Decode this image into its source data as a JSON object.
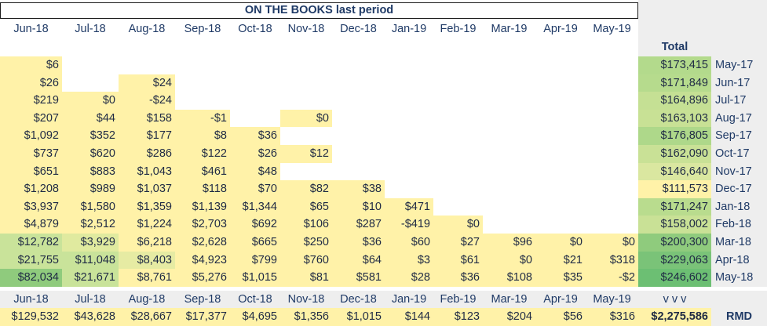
{
  "title": "ON THE BOOKS last period",
  "months": [
    "Jun-18",
    "Jul-18",
    "Aug-18",
    "Sep-18",
    "Oct-18",
    "Nov-18",
    "Dec-18",
    "Jan-19",
    "Feb-19",
    "Mar-19",
    "Apr-19",
    "May-19"
  ],
  "total_header": "Total",
  "rows": [
    {
      "label": "May-17",
      "total": "$173,415",
      "cells": [
        "$6",
        "",
        "",
        "",
        "",
        "",
        "",
        "",
        "",
        "",
        "",
        ""
      ]
    },
    {
      "label": "Jun-17",
      "total": "$171,849",
      "cells": [
        "$26",
        "",
        "$24",
        "",
        "",
        "",
        "",
        "",
        "",
        "",
        "",
        ""
      ]
    },
    {
      "label": "Jul-17",
      "total": "$164,896",
      "cells": [
        "$219",
        "$0",
        "-$24",
        "",
        "",
        "",
        "",
        "",
        "",
        "",
        "",
        ""
      ]
    },
    {
      "label": "Aug-17",
      "total": "$163,103",
      "cells": [
        "$207",
        "$44",
        "$158",
        "-$1",
        "",
        "$0",
        "",
        "",
        "",
        "",
        "",
        ""
      ]
    },
    {
      "label": "Sep-17",
      "total": "$176,805",
      "cells": [
        "$1,092",
        "$352",
        "$177",
        "$8",
        "$36",
        "",
        "",
        "",
        "",
        "",
        "",
        ""
      ]
    },
    {
      "label": "Oct-17",
      "total": "$162,090",
      "cells": [
        "$737",
        "$620",
        "$286",
        "$122",
        "$26",
        "$12",
        "",
        "",
        "",
        "",
        "",
        ""
      ]
    },
    {
      "label": "Nov-17",
      "total": "$146,640",
      "cells": [
        "$651",
        "$883",
        "$1,043",
        "$461",
        "$48",
        "",
        "",
        "",
        "",
        "",
        "",
        ""
      ]
    },
    {
      "label": "Dec-17",
      "total": "$111,573",
      "cells": [
        "$1,208",
        "$989",
        "$1,037",
        "$118",
        "$70",
        "$82",
        "$38",
        "",
        "",
        "",
        "",
        ""
      ]
    },
    {
      "label": "Jan-18",
      "total": "$171,247",
      "cells": [
        "$3,937",
        "$1,580",
        "$1,359",
        "$1,139",
        "$1,344",
        "$65",
        "$10",
        "$471",
        "",
        "",
        "",
        ""
      ]
    },
    {
      "label": "Feb-18",
      "total": "$158,002",
      "cells": [
        "$4,879",
        "$2,512",
        "$1,224",
        "$2,703",
        "$692",
        "$106",
        "$287",
        "-$419",
        "$0",
        "",
        "",
        ""
      ]
    },
    {
      "label": "Mar-18",
      "total": "$200,300",
      "cells": [
        "$12,782",
        "$3,929",
        "$6,218",
        "$2,628",
        "$665",
        "$250",
        "$36",
        "$60",
        "$27",
        "$96",
        "$0",
        "$0"
      ]
    },
    {
      "label": "Apr-18",
      "total": "$229,063",
      "cells": [
        "$21,755",
        "$11,048",
        "$8,403",
        "$4,923",
        "$799",
        "$760",
        "$64",
        "$3",
        "$61",
        "$0",
        "$21",
        "$318"
      ]
    },
    {
      "label": "May-18",
      "total": "$246,602",
      "cells": [
        "$82,034",
        "$21,671",
        "$8,761",
        "$5,276",
        "$1,015",
        "$81",
        "$581",
        "$28",
        "$36",
        "$108",
        "$35",
        "-$2"
      ]
    }
  ],
  "footer_arrow": "v v v",
  "column_totals": [
    "$129,532",
    "$43,628",
    "$28,667",
    "$17,377",
    "$4,695",
    "$1,356",
    "$1,015",
    "$144",
    "$123",
    "$204",
    "$56",
    "$316"
  ],
  "grand_total": "$2,275,586",
  "grand_total_label": "RMD",
  "colors": {
    "yellow": "#fff2a8",
    "light_gray": "#eeeeee",
    "green_dark": "#6cbf73",
    "green_mid": "#9fd38b",
    "green_light": "#c2df96"
  }
}
